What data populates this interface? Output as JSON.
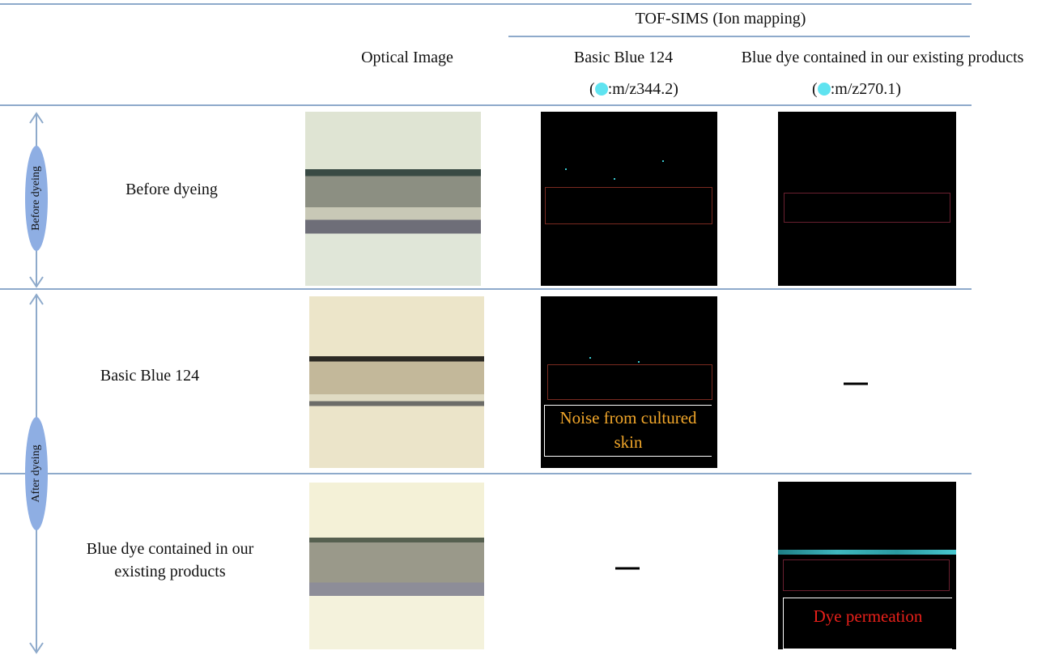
{
  "header": {
    "group": "TOF-SIMS (Ion mapping)",
    "columns": [
      "Optical Image",
      "Basic Blue 124",
      "Blue dye contained in our existing products"
    ],
    "mz": [
      {
        "open": "(",
        "text": ":m/z344.2)"
      },
      {
        "open": "(",
        "text": ":m/z270.1)"
      }
    ]
  },
  "side_labels": [
    "Before dyeing",
    "After dyeing"
  ],
  "rows": [
    {
      "label": "Before dyeing"
    },
    {
      "label": "Basic Blue 124",
      "annotation": "Noise from cultured skin"
    },
    {
      "label": "Blue dye contained in our existing products",
      "annotation": "Dye permeation"
    }
  ]
}
